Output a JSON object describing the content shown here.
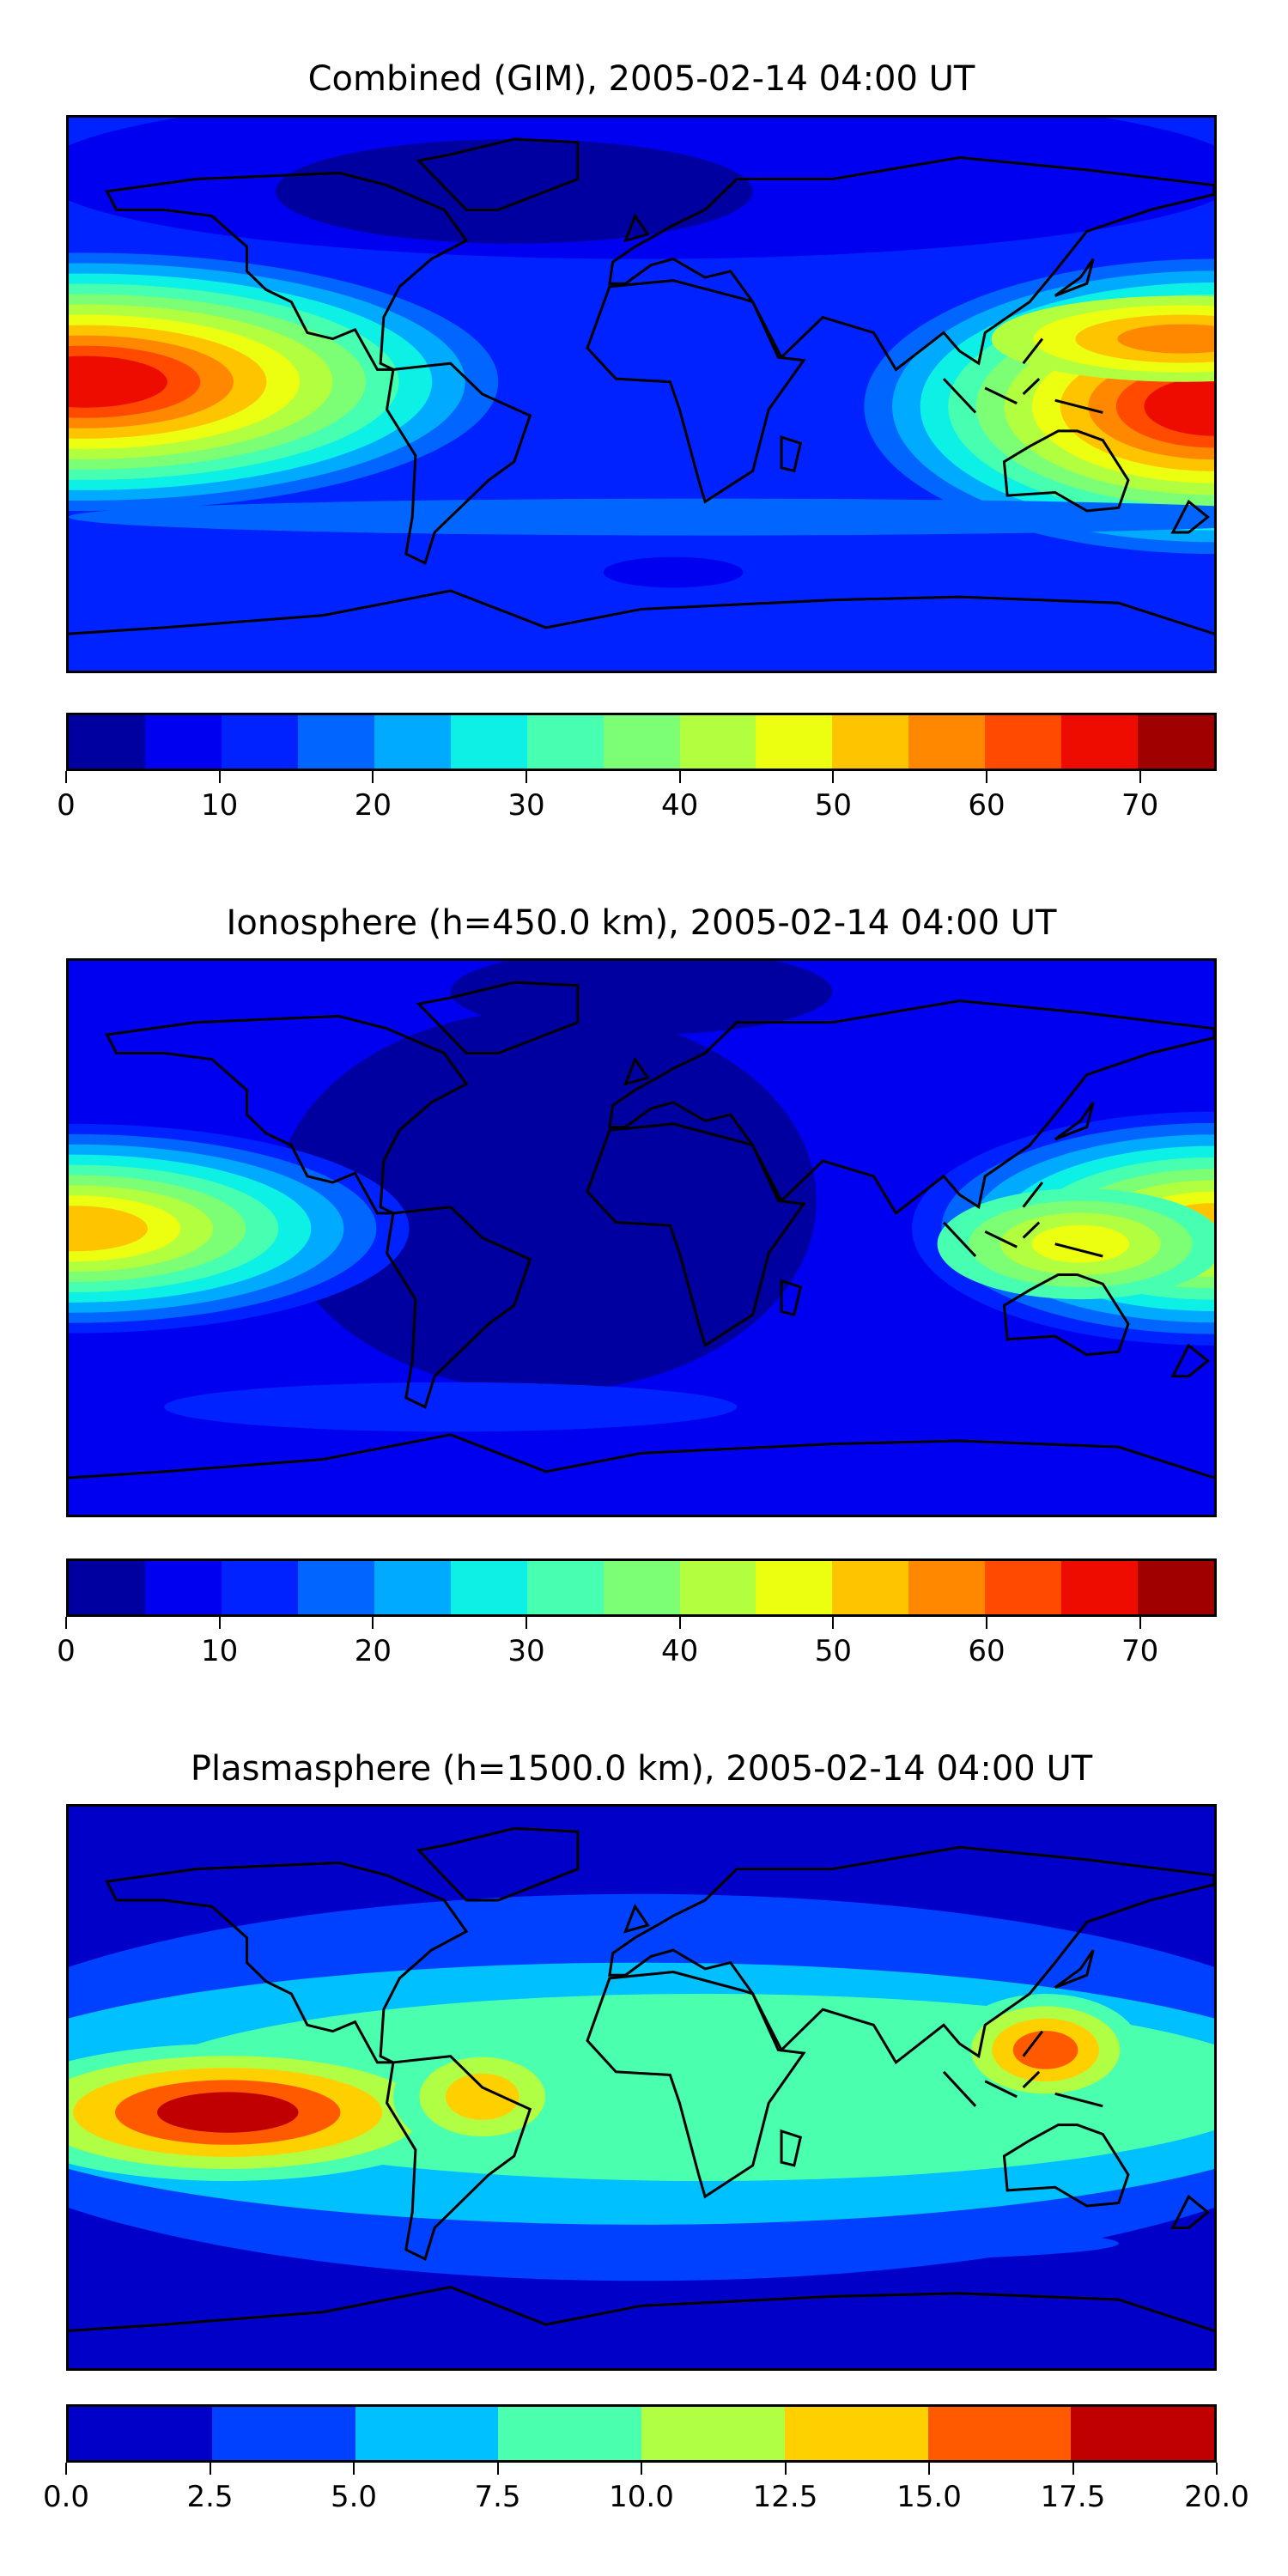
{
  "chart_data": [
    {
      "type": "heatmap",
      "subtype": "filled-contour-map",
      "title": "Combined (GIM), 2005-02-14 04:00 UT",
      "colorbar": {
        "range": [
          0,
          75
        ],
        "levels": [
          0,
          5,
          10,
          15,
          20,
          25,
          30,
          35,
          40,
          45,
          50,
          55,
          60,
          65,
          70,
          75
        ],
        "ticks": [
          "0",
          "10",
          "20",
          "30",
          "40",
          "50",
          "60",
          "70"
        ],
        "tick_values": [
          0,
          10,
          20,
          30,
          40,
          50,
          60,
          70
        ],
        "colors": [
          "#0000a0",
          "#0000f0",
          "#0022ff",
          "#0066ff",
          "#00aaff",
          "#0cf0e6",
          "#46ffb0",
          "#7cff74",
          "#b2ff40",
          "#ecff10",
          "#ffc400",
          "#ff8800",
          "#ff4a00",
          "#ee0c00",
          "#a00000"
        ]
      },
      "background_level": 2,
      "features": [
        {
          "name": "central Pacific maximum",
          "lon": -178,
          "lat": 4,
          "max_level": 13
        },
        {
          "name": "western Pacific / Indonesia maximum",
          "lon": 178,
          "lat": -4,
          "max_level": 13
        },
        {
          "name": "East Asia secondary maximum",
          "lon": 165,
          "lat": 18,
          "max_level": 11
        },
        {
          "name": "North Atlantic minimum",
          "lon": -40,
          "lat": 62,
          "min_level": 0
        }
      ]
    },
    {
      "type": "heatmap",
      "subtype": "filled-contour-map",
      "title": "Ionosphere  (h=450.0 km), 2005-02-14 04:00 UT",
      "colorbar": {
        "range": [
          0,
          75
        ],
        "levels": [
          0,
          5,
          10,
          15,
          20,
          25,
          30,
          35,
          40,
          45,
          50,
          55,
          60,
          65,
          70,
          75
        ],
        "ticks": [
          "0",
          "10",
          "20",
          "30",
          "40",
          "50",
          "60",
          "70"
        ],
        "tick_values": [
          0,
          10,
          20,
          30,
          40,
          50,
          60,
          70
        ],
        "colors": [
          "#0000a0",
          "#0000f0",
          "#0022ff",
          "#0066ff",
          "#00aaff",
          "#0cf0e6",
          "#46ffb0",
          "#7cff74",
          "#b2ff40",
          "#ecff10",
          "#ffc400",
          "#ff8800",
          "#ff4a00",
          "#ee0c00",
          "#a00000"
        ]
      },
      "background_level": 1,
      "features": [
        {
          "name": "central Pacific maximum",
          "lon": -178,
          "lat": 3,
          "max_level": 10
        },
        {
          "name": "western Pacific maximum",
          "lon": 178,
          "lat": 3,
          "max_level": 10
        },
        {
          "name": "Indonesia maximum",
          "lon": 140,
          "lat": -2,
          "max_level": 9
        },
        {
          "name": "Atlantic / Americas minimum",
          "lon": -30,
          "lat": 20,
          "min_level": 0
        }
      ]
    },
    {
      "type": "heatmap",
      "subtype": "filled-contour-map",
      "title": "Plasmasphere (h=1500.0 km), 2005-02-14 04:00 UT",
      "colorbar": {
        "range": [
          0,
          20
        ],
        "levels": [
          0,
          2.5,
          5,
          7.5,
          10,
          12.5,
          15,
          17.5,
          20
        ],
        "ticks": [
          "0.0",
          "2.5",
          "5.0",
          "7.5",
          "10.0",
          "12.5",
          "15.0",
          "17.5",
          "20.0"
        ],
        "tick_values": [
          0,
          2.5,
          5,
          7.5,
          10,
          12.5,
          15,
          17.5,
          20
        ],
        "colors": [
          "#0000c8",
          "#0040ff",
          "#00c0ff",
          "#4affae",
          "#b0ff44",
          "#ffd000",
          "#ff5a00",
          "#c00000"
        ]
      },
      "background_level": 0,
      "features": [
        {
          "name": "eastern Pacific maximum",
          "lon": -130,
          "lat": -8,
          "max_level": 7
        },
        {
          "name": "South America maximum",
          "lon": -50,
          "lat": -3,
          "max_level": 5
        },
        {
          "name": "Philippines maximum",
          "lon": 127,
          "lat": 12,
          "max_level": 6
        },
        {
          "name": "polar minima",
          "lat": [
            70,
            -70
          ],
          "min_level": 0
        }
      ]
    }
  ]
}
